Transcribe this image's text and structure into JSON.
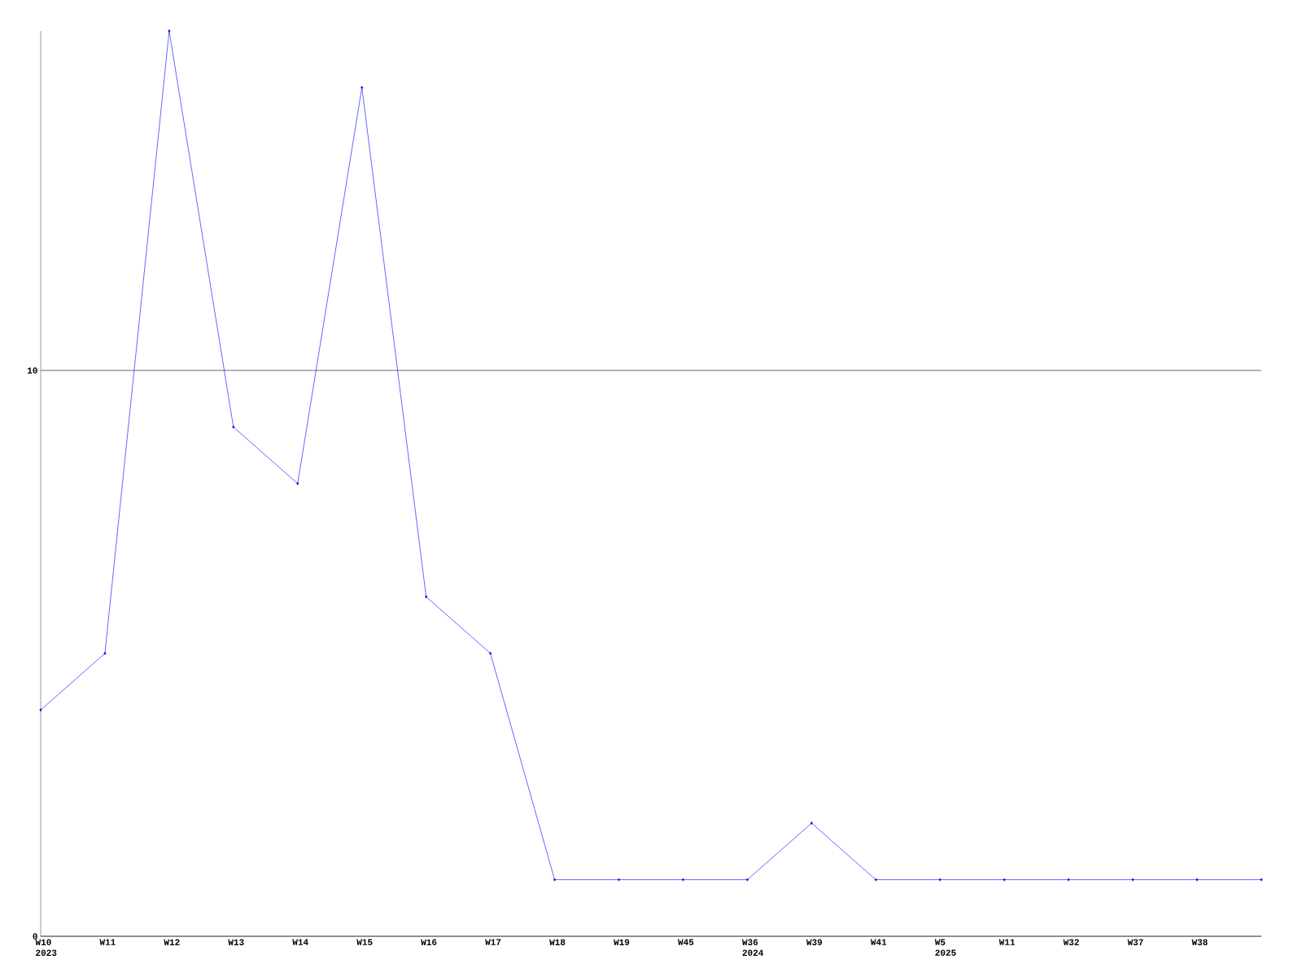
{
  "chart_data": {
    "type": "line",
    "categories": [
      "W10\n2023",
      "W11",
      "W12",
      "W13",
      "W14",
      "W15",
      "W16",
      "W17",
      "W18",
      "W19",
      "W45",
      "W36\n2024",
      "W39",
      "W41",
      "W5\n2025",
      "W11",
      "W32",
      "W37",
      "W38",
      null
    ],
    "series": [
      {
        "color": "#0000ff",
        "values": [
          4,
          5,
          16,
          9,
          8,
          15,
          6,
          5,
          1,
          1,
          1,
          1,
          2,
          1,
          1,
          1,
          1,
          1,
          1,
          1
        ]
      }
    ],
    "ylim": [
      0,
      16
    ],
    "yticks": [
      0,
      10
    ],
    "grid": "y",
    "marker": "diamond",
    "line_style": "solid"
  }
}
